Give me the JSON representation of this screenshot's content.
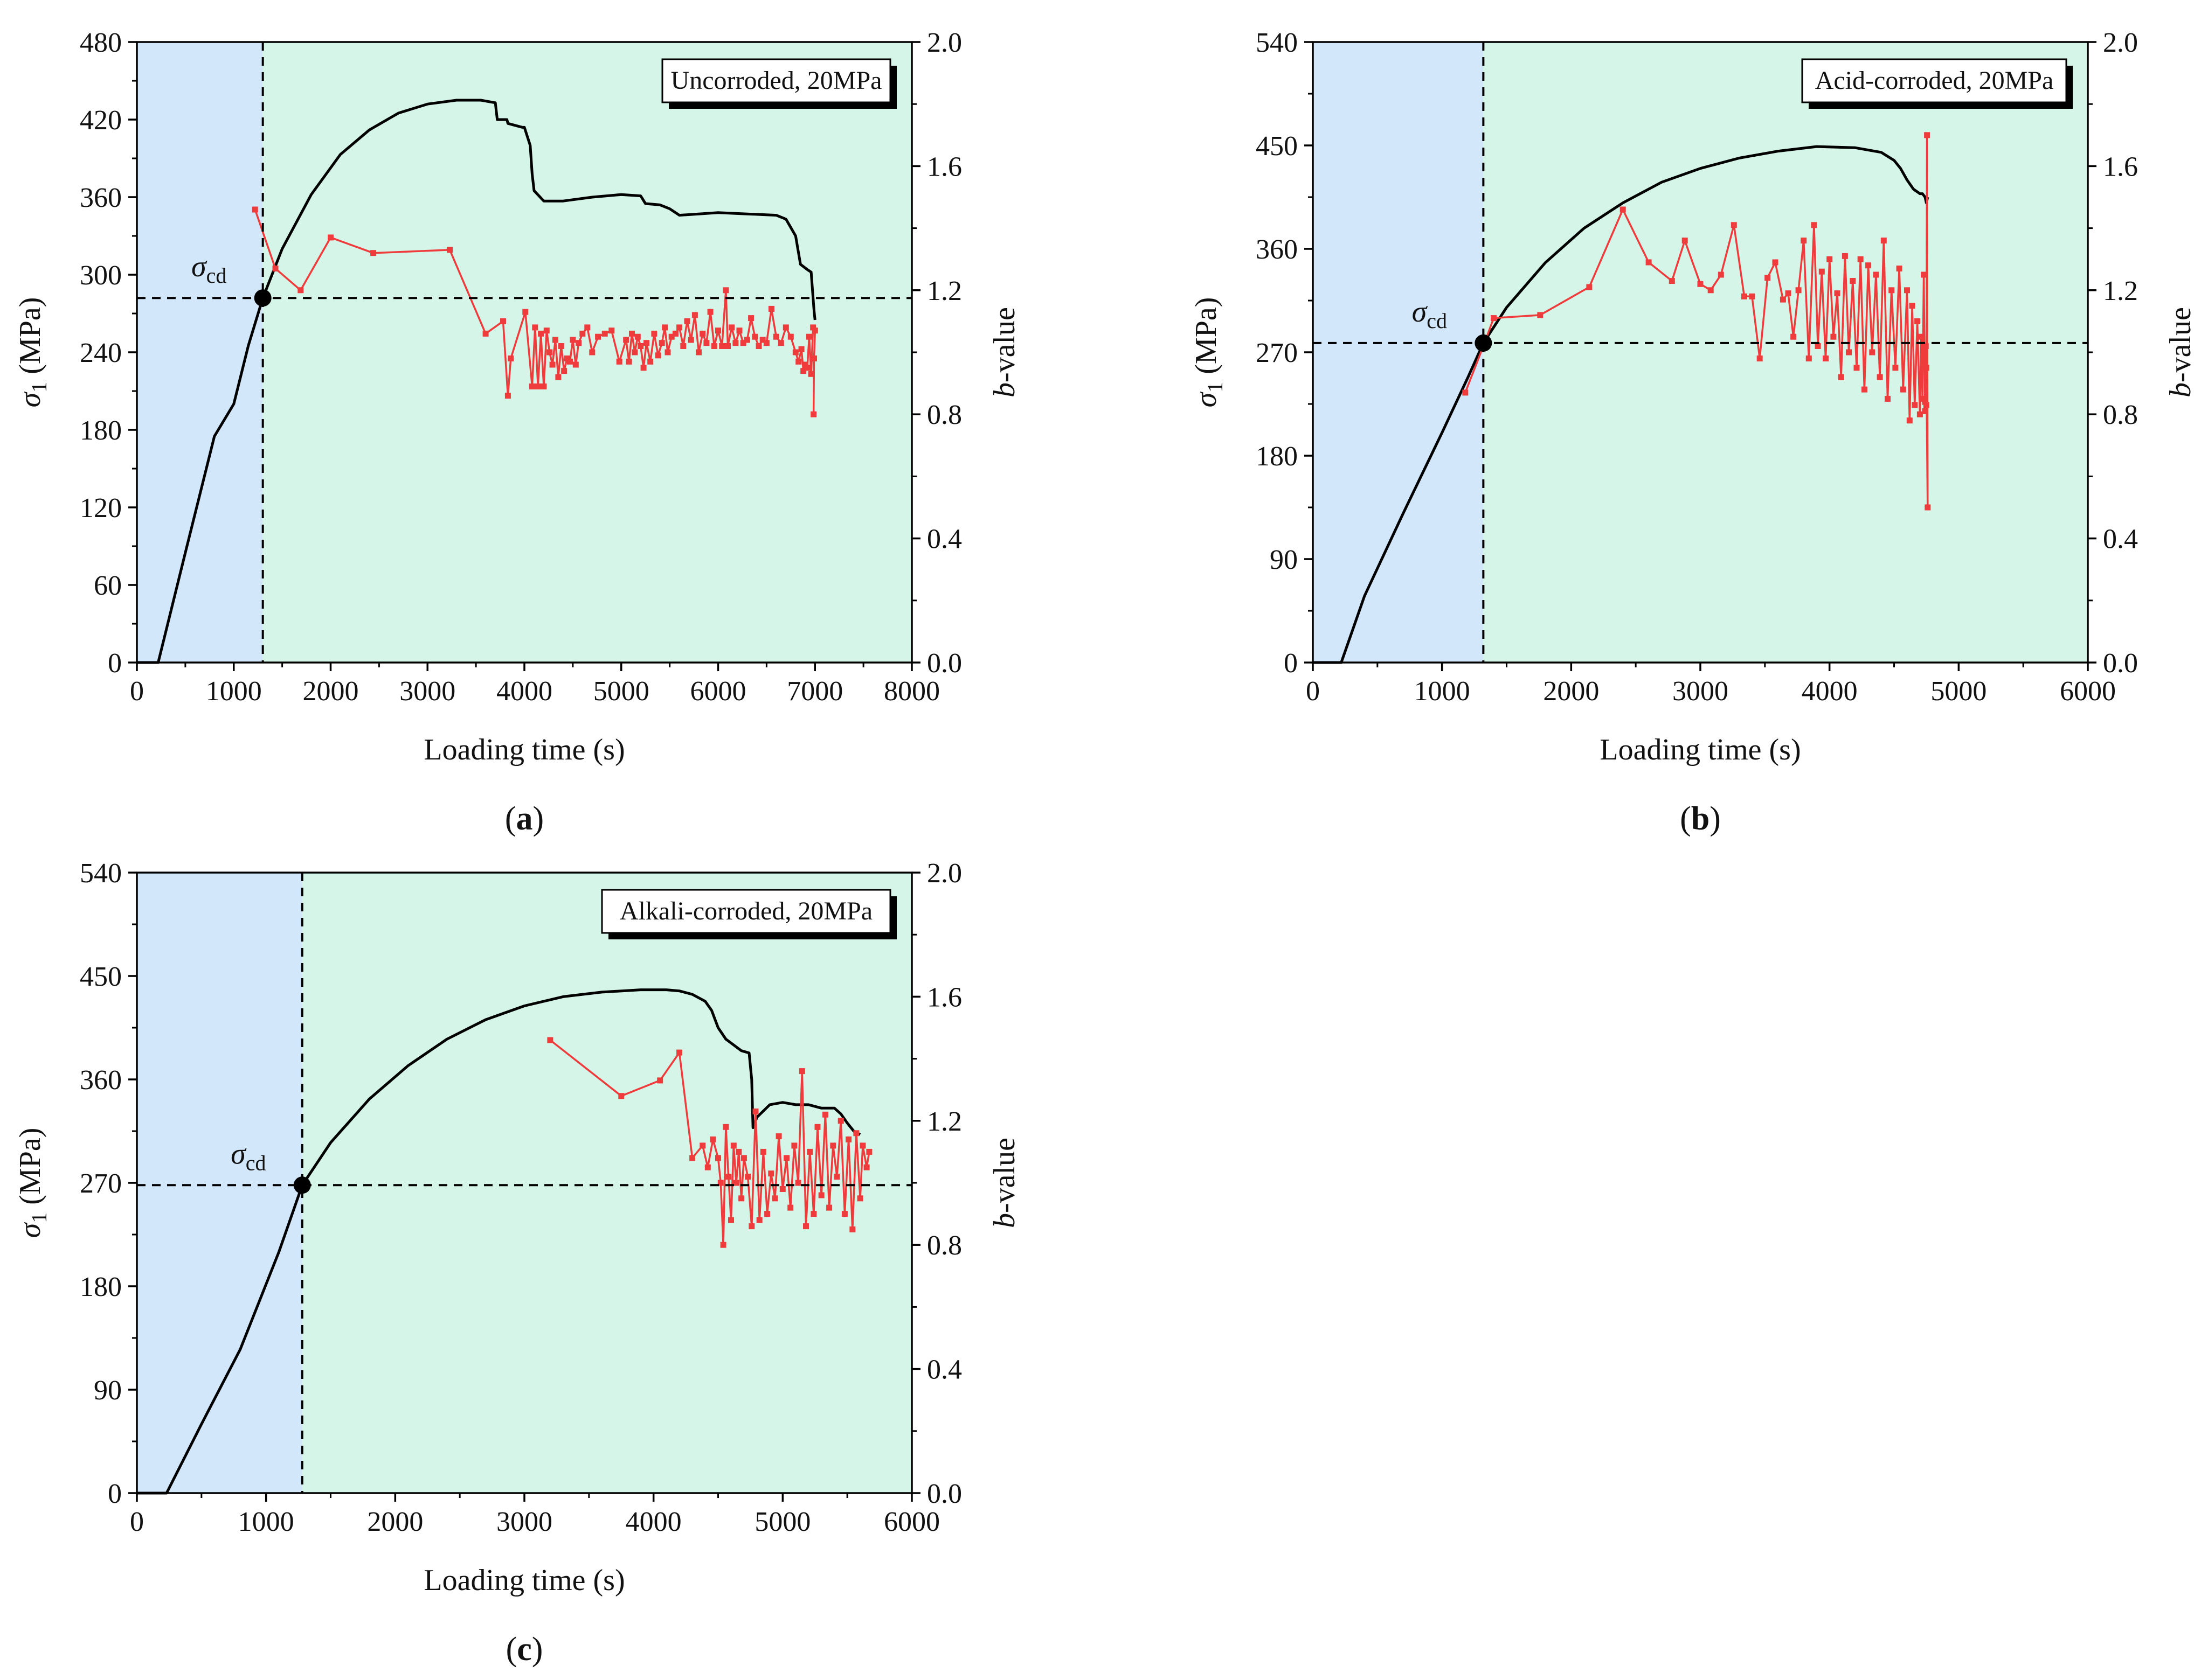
{
  "figure": {
    "panels": [
      "a",
      "b",
      "c"
    ]
  },
  "colors": {
    "pre_region": "#d3e7fb",
    "post_region": "#d5f5e8",
    "stress": "#000000",
    "bvalue": "#ef3b3b"
  },
  "chart_data": [
    {
      "type": "line",
      "panel": "a",
      "panel_label": "a",
      "title": "Uncorroded, 20MPa",
      "xlabel": "Loading time (s)",
      "ylabel_symbol": "σ",
      "ylabel_sub": "1",
      "ylabel_unit": " (MPa)",
      "y2label_italic": "b",
      "y2label_rest": "-value",
      "xlim": [
        0,
        8000
      ],
      "ylim": [
        0,
        480
      ],
      "y2lim": [
        0,
        2.0
      ],
      "xticks": [
        "0",
        "1000",
        "2000",
        "3000",
        "4000",
        "5000",
        "6000",
        "7000",
        "8000"
      ],
      "yticks": [
        "0",
        "60",
        "120",
        "180",
        "240",
        "300",
        "360",
        "420",
        "480"
      ],
      "y2ticks": [
        "0.0",
        "0.4",
        "0.8",
        "1.2",
        "1.6",
        "2.0"
      ],
      "crack_damage": {
        "label_symbol": "σ",
        "label_sub": "cd",
        "time": 1300,
        "stress": 282
      },
      "stress_curve": {
        "name": "σ1",
        "x": [
          0,
          220,
          500,
          800,
          1000,
          1150,
          1300,
          1500,
          1800,
          2100,
          2400,
          2700,
          3000,
          3300,
          3550,
          3700,
          3720,
          3820,
          3830,
          3980,
          4000,
          4060,
          4080,
          4100,
          4200,
          4400,
          4700,
          5000,
          5200,
          5250,
          5400,
          5500,
          5600,
          5800,
          6000,
          6300,
          6600,
          6700,
          6800,
          6850,
          6920,
          6960,
          6980,
          6990,
          7000
        ],
        "y": [
          0,
          0,
          85,
          175,
          200,
          245,
          282,
          320,
          362,
          393,
          412,
          425,
          432,
          435,
          435,
          433,
          420,
          420,
          417,
          414,
          414,
          400,
          378,
          365,
          357,
          357,
          360,
          362,
          361,
          355,
          354,
          351,
          346,
          347,
          348,
          347,
          346,
          343,
          330,
          308,
          304,
          302,
          282,
          272,
          265
        ]
      },
      "bvalue_series": {
        "name": "b-value",
        "x": [
          1220,
          1430,
          1690,
          2000,
          2440,
          3230,
          3600,
          3780,
          3830,
          3860,
          4010,
          4080,
          4110,
          4140,
          4170,
          4200,
          4230,
          4260,
          4290,
          4320,
          4350,
          4380,
          4410,
          4440,
          4470,
          4500,
          4530,
          4560,
          4600,
          4650,
          4700,
          4760,
          4830,
          4900,
          4980,
          5050,
          5080,
          5110,
          5140,
          5170,
          5200,
          5230,
          5260,
          5300,
          5340,
          5380,
          5420,
          5450,
          5480,
          5520,
          5560,
          5600,
          5640,
          5680,
          5720,
          5760,
          5800,
          5840,
          5880,
          5920,
          5960,
          6000,
          6040,
          6080,
          6100,
          6140,
          6180,
          6220,
          6260,
          6300,
          6340,
          6380,
          6420,
          6460,
          6500,
          6550,
          6600,
          6650,
          6700,
          6750,
          6800,
          6830,
          6860,
          6880,
          6900,
          6920,
          6940,
          6960,
          6980,
          7000,
          6990,
          6985
        ],
        "y": [
          1.46,
          1.27,
          1.2,
          1.37,
          1.32,
          1.33,
          1.06,
          1.1,
          0.86,
          0.98,
          1.13,
          0.89,
          1.08,
          0.89,
          1.06,
          0.89,
          1.07,
          1.0,
          0.96,
          1.04,
          0.92,
          1.02,
          0.94,
          0.98,
          0.97,
          1.04,
          0.96,
          1.03,
          1.06,
          1.08,
          1.0,
          1.05,
          1.06,
          1.07,
          0.97,
          1.04,
          0.97,
          1.06,
          1.0,
          1.05,
          1.02,
          0.95,
          1.03,
          0.97,
          1.06,
          0.99,
          1.03,
          1.08,
          1.0,
          1.05,
          1.06,
          1.08,
          1.02,
          1.1,
          1.04,
          1.12,
          1.0,
          1.06,
          1.03,
          1.13,
          1.02,
          1.07,
          1.02,
          1.2,
          1.02,
          1.08,
          1.03,
          1.07,
          1.03,
          1.04,
          1.11,
          1.05,
          1.02,
          1.04,
          1.03,
          1.14,
          1.05,
          1.03,
          1.08,
          1.05,
          1.0,
          0.97,
          1.01,
          0.94,
          0.96,
          0.95,
          1.05,
          0.93,
          1.08,
          1.07,
          0.98,
          0.8
        ]
      }
    },
    {
      "type": "line",
      "panel": "b",
      "panel_label": "b",
      "title": "Acid-corroded, 20MPa",
      "xlabel": "Loading time (s)",
      "ylabel_symbol": "σ",
      "ylabel_sub": "1",
      "ylabel_unit": " (MPa)",
      "y2label_italic": "b",
      "y2label_rest": "-value",
      "xlim": [
        0,
        6000
      ],
      "ylim": [
        0,
        540
      ],
      "y2lim": [
        0,
        2.0
      ],
      "xticks": [
        "0",
        "1000",
        "2000",
        "3000",
        "4000",
        "5000",
        "6000"
      ],
      "yticks": [
        "0",
        "90",
        "180",
        "270",
        "360",
        "450",
        "540"
      ],
      "y2ticks": [
        "0.0",
        "0.4",
        "0.8",
        "1.2",
        "1.6",
        "2.0"
      ],
      "crack_damage": {
        "label_symbol": "σ",
        "label_sub": "cd",
        "time": 1320,
        "stress": 278
      },
      "stress_curve": {
        "name": "σ1",
        "x": [
          0,
          220,
          400,
          700,
          1000,
          1200,
          1320,
          1500,
          1800,
          2100,
          2400,
          2700,
          3000,
          3300,
          3600,
          3900,
          4200,
          4400,
          4500,
          4550,
          4600,
          4650,
          4700,
          4720,
          4740,
          4750,
          4760
        ],
        "y": [
          0,
          0,
          58,
          130,
          200,
          248,
          278,
          309,
          348,
          378,
          400,
          418,
          430,
          439,
          445,
          449,
          448,
          444,
          437,
          430,
          420,
          412,
          408,
          408,
          405,
          400,
          405
        ]
      },
      "bvalue_series": {
        "name": "b-value",
        "x": [
          1180,
          1320,
          1400,
          1760,
          2140,
          2400,
          2600,
          2780,
          2880,
          3000,
          3080,
          3160,
          3260,
          3340,
          3400,
          3460,
          3520,
          3580,
          3640,
          3680,
          3720,
          3760,
          3800,
          3840,
          3880,
          3910,
          3940,
          3970,
          4000,
          4030,
          4060,
          4090,
          4120,
          4150,
          4180,
          4210,
          4240,
          4270,
          4300,
          4330,
          4360,
          4390,
          4420,
          4450,
          4480,
          4510,
          4540,
          4570,
          4600,
          4620,
          4640,
          4660,
          4680,
          4700,
          4710,
          4720,
          4730,
          4740,
          4745,
          4750,
          4755,
          4760,
          4750,
          4740
        ],
        "y": [
          0.87,
          1.02,
          1.11,
          1.12,
          1.21,
          1.46,
          1.29,
          1.23,
          1.36,
          1.22,
          1.2,
          1.25,
          1.41,
          1.18,
          1.18,
          0.98,
          1.24,
          1.29,
          1.17,
          1.19,
          1.05,
          1.2,
          1.36,
          0.98,
          1.41,
          1.02,
          1.26,
          0.98,
          1.3,
          1.05,
          1.19,
          0.92,
          1.31,
          1.0,
          1.23,
          0.95,
          1.3,
          0.88,
          1.28,
          1.0,
          1.25,
          0.92,
          1.36,
          0.85,
          1.2,
          0.95,
          1.27,
          0.88,
          1.2,
          0.78,
          1.15,
          0.83,
          1.1,
          0.8,
          1.05,
          0.85,
          1.25,
          0.81,
          1.02,
          0.83,
          1.7,
          0.5,
          0.95,
          0.84
        ]
      }
    },
    {
      "type": "line",
      "panel": "c",
      "panel_label": "c",
      "title": "Alkali-corroded, 20MPa",
      "xlabel": "Loading time (s)",
      "ylabel_symbol": "σ",
      "ylabel_sub": "1",
      "ylabel_unit": " (MPa)",
      "y2label_italic": "b",
      "y2label_rest": "-value",
      "xlim": [
        0,
        6000
      ],
      "ylim": [
        0,
        540
      ],
      "y2lim": [
        0,
        2.0
      ],
      "xticks": [
        "0",
        "1000",
        "2000",
        "3000",
        "4000",
        "5000",
        "6000"
      ],
      "yticks": [
        "0",
        "90",
        "180",
        "270",
        "360",
        "450",
        "540"
      ],
      "y2ticks": [
        "0.0",
        "0.4",
        "0.8",
        "1.2",
        "1.6",
        "2.0"
      ],
      "crack_damage": {
        "label_symbol": "σ",
        "label_sub": "cd",
        "time": 1280,
        "stress": 268
      },
      "stress_curve": {
        "name": "σ1",
        "x": [
          0,
          230,
          500,
          800,
          1100,
          1280,
          1500,
          1800,
          2100,
          2400,
          2700,
          3000,
          3300,
          3600,
          3900,
          4100,
          4200,
          4300,
          4400,
          4450,
          4500,
          4560,
          4620,
          4680,
          4740,
          4760,
          4770,
          4800,
          4900,
          5000,
          5100,
          5200,
          5300,
          5400,
          5450,
          5500,
          5550,
          5600
        ],
        "y": [
          0,
          0,
          60,
          125,
          210,
          268,
          305,
          343,
          372,
          395,
          412,
          424,
          432,
          436,
          438,
          438,
          437,
          434,
          428,
          420,
          405,
          395,
          390,
          385,
          383,
          360,
          318,
          327,
          338,
          340,
          338,
          338,
          335,
          335,
          330,
          322,
          315,
          312
        ]
      },
      "bvalue_series": {
        "name": "b-value",
        "x": [
          3200,
          3750,
          4050,
          4200,
          4300,
          4380,
          4420,
          4460,
          4500,
          4520,
          4540,
          4560,
          4580,
          4600,
          4620,
          4640,
          4660,
          4680,
          4700,
          4730,
          4760,
          4790,
          4820,
          4850,
          4880,
          4910,
          4940,
          4970,
          5000,
          5030,
          5060,
          5090,
          5120,
          5150,
          5180,
          5210,
          5240,
          5270,
          5300,
          5330,
          5360,
          5390,
          5420,
          5450,
          5480,
          5510,
          5540,
          5570,
          5600,
          5620,
          5650,
          5670
        ],
        "y": [
          1.46,
          1.28,
          1.33,
          1.42,
          1.08,
          1.12,
          1.05,
          1.14,
          1.08,
          1.0,
          0.8,
          1.18,
          1.02,
          0.88,
          1.12,
          1.0,
          1.1,
          0.95,
          1.08,
          1.02,
          0.86,
          1.23,
          0.88,
          1.1,
          0.9,
          1.03,
          0.95,
          1.15,
          0.98,
          1.08,
          0.92,
          1.12,
          1.0,
          1.36,
          0.86,
          1.1,
          0.9,
          1.18,
          0.96,
          1.22,
          0.92,
          1.12,
          1.02,
          1.2,
          0.9,
          1.14,
          0.85,
          1.16,
          0.95,
          1.12,
          1.05,
          1.1
        ]
      }
    }
  ]
}
